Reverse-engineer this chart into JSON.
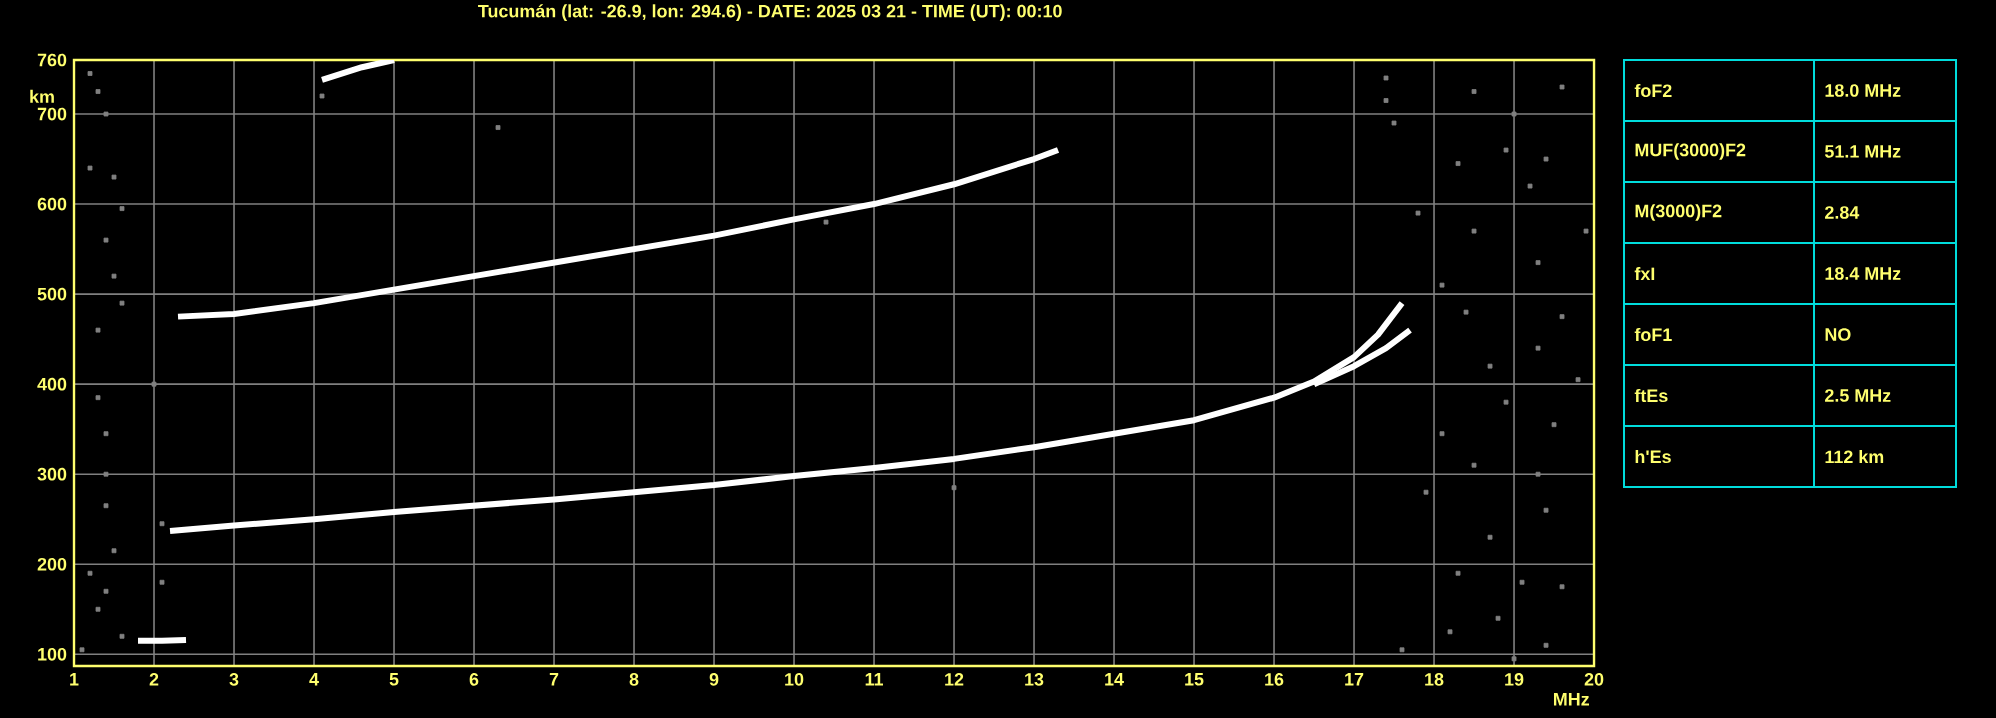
{
  "chart_data": [
    {
      "type": "line",
      "title": "Tucumán (lat: -26.9, lon: 294.6) - DATE: 2025 03 21 - TIME (UT): 00:10",
      "xlabel": "MHz",
      "ylabel": "km",
      "xlim": [
        1,
        20
      ],
      "ylim": [
        87,
        760
      ],
      "xticks": [
        1,
        2,
        3,
        4,
        5,
        6,
        7,
        8,
        9,
        10,
        11,
        12,
        13,
        14,
        15,
        16,
        17,
        18,
        19,
        20
      ],
      "yticks": [
        100,
        200,
        300,
        400,
        500,
        600,
        700,
        760
      ],
      "grid": true,
      "series": [
        {
          "type": "line",
          "color": "#ffffff",
          "marker": "none",
          "line_style": "solid",
          "x": [
            1.8,
            2.1,
            2.4
          ],
          "values": [
            115,
            115,
            116
          ]
        },
        {
          "type": "line",
          "color": "#ffffff",
          "marker": "none",
          "line_style": "solid",
          "x": [
            2.2,
            3,
            4,
            5,
            6,
            7,
            8,
            9,
            10,
            11,
            12,
            13,
            14,
            15,
            16,
            16.5,
            17,
            17.3,
            17.6
          ],
          "values": [
            237,
            243,
            250,
            258,
            265,
            272,
            280,
            288,
            298,
            307,
            317,
            330,
            345,
            360,
            385,
            403,
            430,
            455,
            490
          ]
        },
        {
          "type": "line",
          "color": "#ffffff",
          "marker": "none",
          "line_style": "solid",
          "x": [
            16.5,
            17,
            17.4,
            17.7
          ],
          "values": [
            400,
            420,
            440,
            460
          ]
        },
        {
          "type": "line",
          "color": "#ffffff",
          "marker": "none",
          "line_style": "solid",
          "x": [
            2.3,
            3,
            4,
            5,
            6,
            7,
            8,
            9,
            10,
            11,
            12,
            13,
            13.3
          ],
          "values": [
            475,
            478,
            490,
            505,
            520,
            535,
            550,
            565,
            583,
            600,
            622,
            650,
            660
          ]
        },
        {
          "type": "line",
          "color": "#ffffff",
          "marker": "none",
          "line_style": "solid",
          "x": [
            4.1,
            4.6,
            5.0
          ],
          "values": [
            738,
            752,
            760
          ]
        },
        {
          "type": "scatter",
          "color": "#808080",
          "marker": "square",
          "x": [
            1.2,
            1.3,
            1.4,
            1.2,
            1.5,
            1.6,
            1.4,
            1.5,
            1.6,
            1.3,
            1.3,
            1.4,
            1.4,
            1.4,
            1.5,
            1.2,
            1.4,
            1.3,
            1.6,
            1.1,
            2.0,
            2.1,
            2.1,
            4.1,
            6.3,
            10.4,
            12.0,
            17.4,
            17.4,
            17.5,
            18.5,
            19.0,
            19.6,
            18.3,
            18.9,
            19.4,
            19.2,
            17.8,
            18.5,
            19.9,
            18.1,
            19.3,
            18.4,
            19.6,
            19.3,
            18.7,
            19.8,
            18.9,
            18.1,
            19.5,
            18.5,
            19.3,
            17.9,
            18.7,
            19.4,
            18.3,
            19.1,
            19.6,
            18.8,
            18.2,
            19.4,
            19.0,
            17.6
          ],
          "values": [
            745,
            725,
            700,
            640,
            630,
            595,
            560,
            520,
            490,
            460,
            385,
            345,
            300,
            265,
            215,
            190,
            170,
            150,
            120,
            105,
            400,
            245,
            180,
            720,
            685,
            580,
            285,
            740,
            715,
            690,
            725,
            700,
            730,
            645,
            660,
            650,
            620,
            590,
            570,
            570,
            510,
            535,
            480,
            475,
            440,
            420,
            405,
            380,
            345,
            355,
            310,
            300,
            280,
            230,
            260,
            190,
            180,
            175,
            140,
            125,
            110,
            95,
            105
          ]
        }
      ]
    },
    {
      "type": "other",
      "annotations": [
        "foF2",
        "18.0 MHz",
        "MUF(3000)F2",
        "51.1 MHz",
        "M(3000)F2",
        "2.84",
        "fxI",
        "18.4 MHz",
        "foF1",
        "NO",
        "ftEs",
        "2.5 MHz",
        "h'Es",
        "112 km"
      ]
    }
  ]
}
